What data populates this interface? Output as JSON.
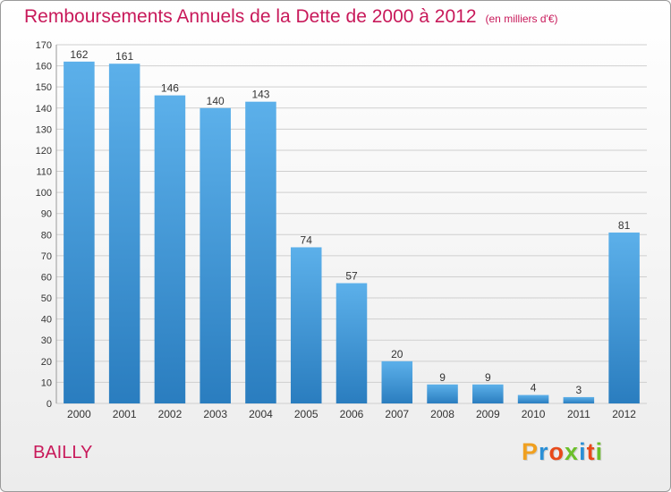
{
  "title": "Remboursements Annuels de la Dette de 2000 à 2012",
  "unit": "(en milliers d'€)",
  "commune": "BAILLY",
  "brand": "Proxiti",
  "colors": {
    "title": "#c8195a",
    "bar_top": "#5cb0ea",
    "bar_bottom": "#2a7dbf",
    "grid": "#cfcfcf"
  },
  "chart_data": {
    "type": "bar",
    "categories": [
      "2000",
      "2001",
      "2002",
      "2003",
      "2004",
      "2005",
      "2006",
      "2007",
      "2008",
      "2009",
      "2010",
      "2011",
      "2012"
    ],
    "values": [
      162,
      161,
      146,
      140,
      143,
      74,
      57,
      20,
      9,
      9,
      4,
      3,
      81
    ],
    "ylim": [
      0,
      170
    ],
    "yticks": [
      0,
      10,
      20,
      30,
      40,
      50,
      60,
      70,
      80,
      90,
      100,
      110,
      120,
      130,
      140,
      150,
      160,
      170
    ],
    "grid": true,
    "data_labels": true
  }
}
